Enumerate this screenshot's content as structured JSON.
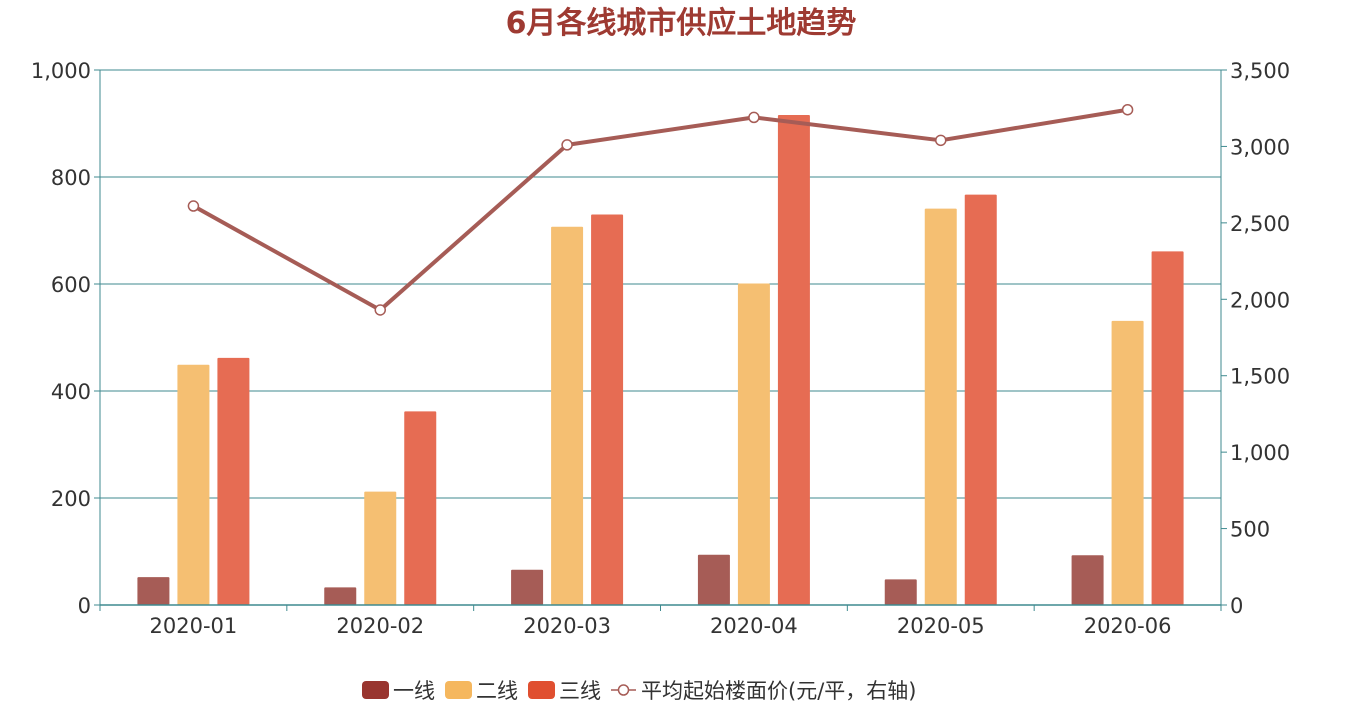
{
  "chart_data": {
    "type": "bar",
    "title": "6月各线城市供应土地趋势",
    "categories": [
      "2020-01",
      "2020-02",
      "2020-03",
      "2020-04",
      "2020-05",
      "2020-06"
    ],
    "series": [
      {
        "name": "一线",
        "type": "bar",
        "axis": "left",
        "color": "#a65c56",
        "legend_color": "#99352f",
        "values": [
          52,
          33,
          66,
          94,
          48,
          93
        ]
      },
      {
        "name": "二线",
        "type": "bar",
        "axis": "left",
        "color": "#f5bf72",
        "legend_color": "#f5b75e",
        "values": [
          449,
          212,
          707,
          601,
          741,
          531
        ]
      },
      {
        "name": "三线",
        "type": "bar",
        "axis": "left",
        "color": "#e66c53",
        "legend_color": "#e04f30",
        "values": [
          462,
          362,
          730,
          916,
          767,
          661
        ]
      },
      {
        "name": "平均起始楼面价(元/平，右轴)",
        "type": "line",
        "axis": "right",
        "color": "#a65c56",
        "values": [
          2610,
          1930,
          3010,
          3190,
          3040,
          3240
        ]
      }
    ],
    "y_left": {
      "min": 0,
      "max": 1000,
      "ticks": [
        0,
        200,
        400,
        600,
        800,
        1000
      ],
      "tick_labels": [
        "0",
        "200",
        "400",
        "600",
        "800",
        "1,000"
      ]
    },
    "y_right": {
      "min": 0,
      "max": 3500,
      "ticks": [
        0,
        500,
        1000,
        1500,
        2000,
        2500,
        3000,
        3500
      ],
      "tick_labels": [
        "0",
        "500",
        "1,000",
        "1,500",
        "2,000",
        "2,500",
        "3,000",
        "3,500"
      ]
    },
    "grid": true,
    "axis_color": "#3f8a8f",
    "title_color": "#9e3a32",
    "legend_position": "bottom-center"
  }
}
